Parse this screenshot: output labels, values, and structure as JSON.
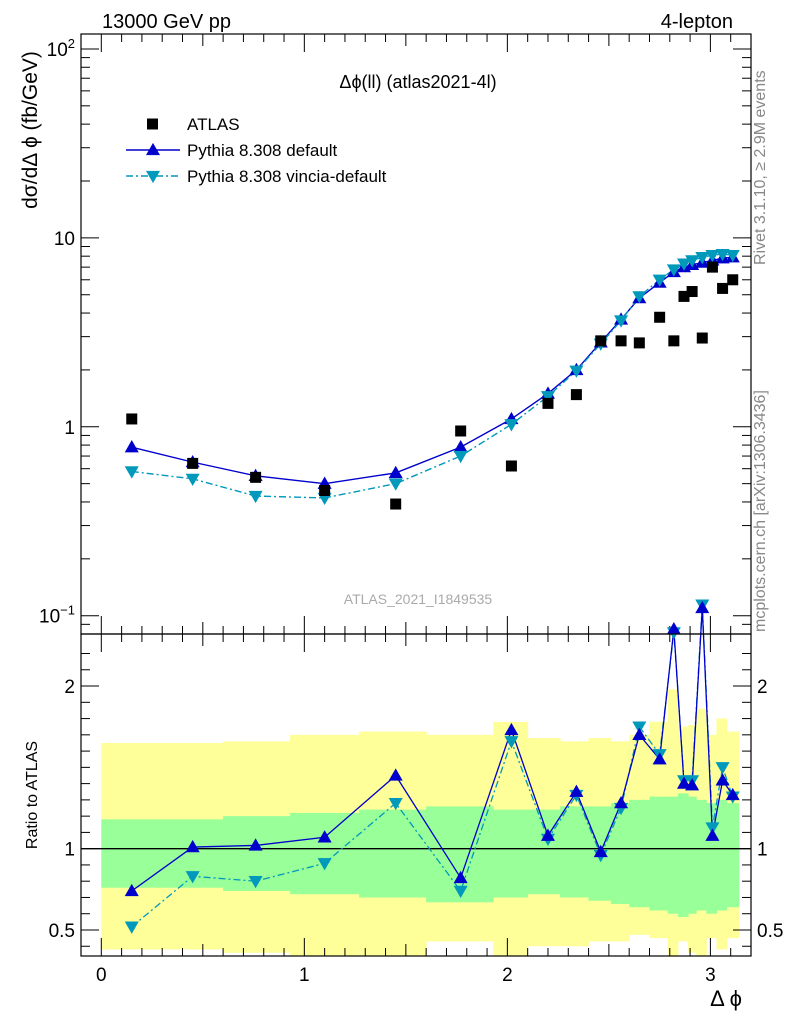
{
  "header": {
    "left": "13000 GeV pp",
    "right": "4-lepton"
  },
  "side_text": {
    "rivet": "Rivet 3.1.10, ≥ 2.9M events",
    "mcplots": "mcplots.cern.ch [arXiv:1306.3436]"
  },
  "watermark": "ATLAS_2021_I1849535",
  "colors": {
    "data": "#000000",
    "default": "#0000cc",
    "vincia": "#0099bb",
    "band_inner": "#99ff99",
    "band_outer": "#ffff99"
  },
  "chart_data": [
    {
      "type": "scatter",
      "panel": "main",
      "title": "Δϕ(ll) (atlas2021-4l)",
      "ylabel": "dσ/dΔ ϕ (fb/GeV)",
      "xlabel": "",
      "yscale": "log",
      "xlim": [
        -0.1,
        3.2
      ],
      "ylim": [
        0.08,
        120
      ],
      "yticks": [
        {
          "value": 0.1,
          "base": "10",
          "exp": "−1"
        },
        {
          "value": 1,
          "base": "1",
          "exp": ""
        },
        {
          "value": 10,
          "base": "10",
          "exp": ""
        },
        {
          "value": 100,
          "base": "10",
          "exp": "2"
        }
      ],
      "legend_position": "top-left",
      "series": [
        {
          "name": "ATLAS",
          "style": "markers",
          "x": [
            0.15,
            0.45,
            0.76,
            1.1,
            1.45,
            1.77,
            2.02,
            2.2,
            2.34,
            2.46,
            2.56,
            2.65,
            2.75,
            2.82,
            2.87,
            2.91,
            2.96,
            3.01,
            3.06,
            3.11
          ],
          "values": [
            1.1,
            0.64,
            0.54,
            0.46,
            0.39,
            0.95,
            0.62,
            1.33,
            1.48,
            2.85,
            2.85,
            2.78,
            3.8,
            2.85,
            4.9,
            5.2,
            2.95,
            7.0,
            5.4,
            6.0
          ]
        },
        {
          "name": "Pythia 8.308 default",
          "style": "line+triangle-up",
          "x": [
            0.15,
            0.45,
            0.76,
            1.1,
            1.45,
            1.77,
            2.02,
            2.2,
            2.34,
            2.46,
            2.56,
            2.65,
            2.75,
            2.82,
            2.87,
            2.91,
            2.96,
            3.01,
            3.06,
            3.11
          ],
          "values": [
            0.78,
            0.65,
            0.55,
            0.5,
            0.57,
            0.78,
            1.1,
            1.5,
            2.0,
            2.8,
            3.7,
            4.8,
            5.8,
            6.6,
            7.0,
            7.2,
            7.4,
            7.6,
            7.8,
            7.9
          ]
        },
        {
          "name": "Pythia 8.308 vincia-default",
          "style": "dashdot+triangle-down",
          "x": [
            0.15,
            0.45,
            0.76,
            1.1,
            1.45,
            1.77,
            2.02,
            2.2,
            2.34,
            2.46,
            2.56,
            2.65,
            2.75,
            2.82,
            2.87,
            2.91,
            2.96,
            3.01,
            3.06,
            3.11
          ],
          "values": [
            0.58,
            0.53,
            0.43,
            0.42,
            0.5,
            0.7,
            1.03,
            1.45,
            1.98,
            2.75,
            3.65,
            4.9,
            6.0,
            6.8,
            7.3,
            7.6,
            7.9,
            8.1,
            8.2,
            8.1
          ]
        }
      ]
    },
    {
      "type": "line",
      "panel": "ratio",
      "title": "",
      "ylabel": "Ratio to ATLAS",
      "xlabel": "Δ ϕ",
      "xlim": [
        -0.1,
        3.2
      ],
      "ylim": [
        0.34,
        2.32
      ],
      "xticks": [
        0,
        1,
        2,
        3
      ],
      "yticks": [
        0.5,
        1,
        2
      ],
      "reference_line": 1,
      "bands": {
        "edges": [
          0.0,
          0.3,
          0.6,
          0.93,
          1.27,
          1.6,
          1.93,
          2.1,
          2.26,
          2.4,
          2.51,
          2.6,
          2.7,
          2.79,
          2.84,
          2.89,
          2.93,
          2.98,
          3.03,
          3.08,
          3.14
        ],
        "inner_low": [
          0.76,
          0.76,
          0.74,
          0.72,
          0.7,
          0.67,
          0.7,
          0.72,
          0.7,
          0.68,
          0.66,
          0.64,
          0.62,
          0.6,
          0.58,
          0.6,
          0.62,
          0.6,
          0.62,
          0.64
        ],
        "inner_high": [
          1.18,
          1.18,
          1.2,
          1.22,
          1.24,
          1.26,
          1.24,
          1.24,
          1.26,
          1.26,
          1.28,
          1.3,
          1.32,
          1.32,
          1.34,
          1.32,
          1.3,
          1.28,
          1.3,
          1.28
        ],
        "outer_low": [
          0.38,
          0.38,
          0.36,
          0.33,
          0.33,
          0.43,
          0.33,
          0.4,
          0.4,
          0.43,
          0.43,
          0.47,
          0.45,
          0.33,
          0.43,
          0.36,
          0.33,
          0.45,
          0.38,
          0.45
        ],
        "outer_high": [
          1.65,
          1.65,
          1.66,
          1.7,
          1.72,
          1.7,
          1.78,
          1.68,
          1.66,
          1.68,
          1.66,
          1.7,
          1.78,
          1.98,
          1.75,
          1.76,
          1.86,
          1.7,
          1.8,
          1.72
        ]
      },
      "series": [
        {
          "name": "Pythia 8.308 default",
          "x": [
            0.15,
            0.45,
            0.76,
            1.1,
            1.45,
            1.77,
            2.02,
            2.2,
            2.34,
            2.46,
            2.56,
            2.65,
            2.75,
            2.82,
            2.87,
            2.91,
            2.96,
            3.01,
            3.06,
            3.11
          ],
          "values": [
            0.74,
            1.01,
            1.02,
            1.07,
            1.45,
            0.82,
            1.73,
            1.08,
            1.35,
            0.98,
            1.28,
            1.7,
            1.55,
            2.35,
            1.4,
            1.39,
            2.48,
            1.08,
            1.42,
            1.33
          ]
        },
        {
          "name": "Pythia 8.308 vincia-default",
          "x": [
            0.15,
            0.45,
            0.76,
            1.1,
            1.45,
            1.77,
            2.02,
            2.2,
            2.34,
            2.46,
            2.56,
            2.65,
            2.75,
            2.82,
            2.87,
            2.91,
            2.96,
            3.01,
            3.06,
            3.11
          ],
          "values": [
            0.52,
            0.83,
            0.8,
            0.91,
            1.28,
            0.74,
            1.66,
            1.06,
            1.33,
            0.96,
            1.25,
            1.75,
            1.58,
            2.33,
            1.42,
            1.42,
            2.5,
            1.13,
            1.5,
            1.32
          ]
        }
      ]
    }
  ]
}
